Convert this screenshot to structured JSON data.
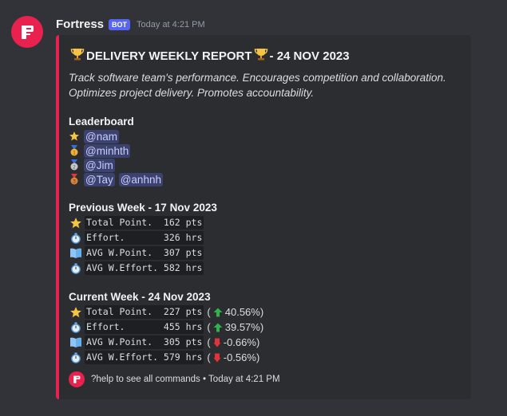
{
  "message": {
    "author": "Fortress",
    "tag": "BOT",
    "timestamp": "Today at 4:21 PM"
  },
  "embed": {
    "title": "DELIVERY WEEKLY REPORT",
    "title_date": "- 24 NOV 2023",
    "description": "Track software team's performance. Encourages competition and collaboration. Optimizes project delivery. Promotes accountability.",
    "accent_color": "#e8214f",
    "leaderboard": {
      "heading": "Leaderboard",
      "rows": [
        {
          "medal": "star-icon",
          "mentions": [
            "@nam"
          ]
        },
        {
          "medal": "gold-medal-icon",
          "mentions": [
            "@minhth"
          ]
        },
        {
          "medal": "silver-medal-icon",
          "mentions": [
            "@Jim"
          ]
        },
        {
          "medal": "bronze-medal-icon",
          "mentions": [
            "@Tay",
            "@anhnh"
          ]
        }
      ]
    },
    "previous_week": {
      "heading": "Previous Week - 17 Nov 2023",
      "rows": [
        {
          "icon": "star-icon",
          "text": "Total Point.  162 pts"
        },
        {
          "icon": "stopwatch-icon",
          "text": "Effort.       326 hrs"
        },
        {
          "icon": "book-icon",
          "text": "AVG W.Point.  307 pts"
        },
        {
          "icon": "stopwatch-icon",
          "text": "AVG W.Effort. 582 hrs"
        }
      ]
    },
    "current_week": {
      "heading": "Current Week - 24 Nov 2023",
      "rows": [
        {
          "icon": "star-icon",
          "text": "Total Point.  227 pts",
          "trend": "up",
          "change": "40.56%)"
        },
        {
          "icon": "stopwatch-icon",
          "text": "Effort.       455 hrs",
          "trend": "up",
          "change": "39.57%)"
        },
        {
          "icon": "book-icon",
          "text": "AVG W.Point.  305 pts",
          "trend": "down",
          "change": "-0.66%)"
        },
        {
          "icon": "stopwatch-icon",
          "text": "AVG W.Effort. 579 hrs",
          "trend": "down",
          "change": "-0.56%)"
        }
      ]
    },
    "footer": {
      "text": "?help to see all commands",
      "separator": "•",
      "timestamp": "Today at 4:21 PM"
    }
  }
}
